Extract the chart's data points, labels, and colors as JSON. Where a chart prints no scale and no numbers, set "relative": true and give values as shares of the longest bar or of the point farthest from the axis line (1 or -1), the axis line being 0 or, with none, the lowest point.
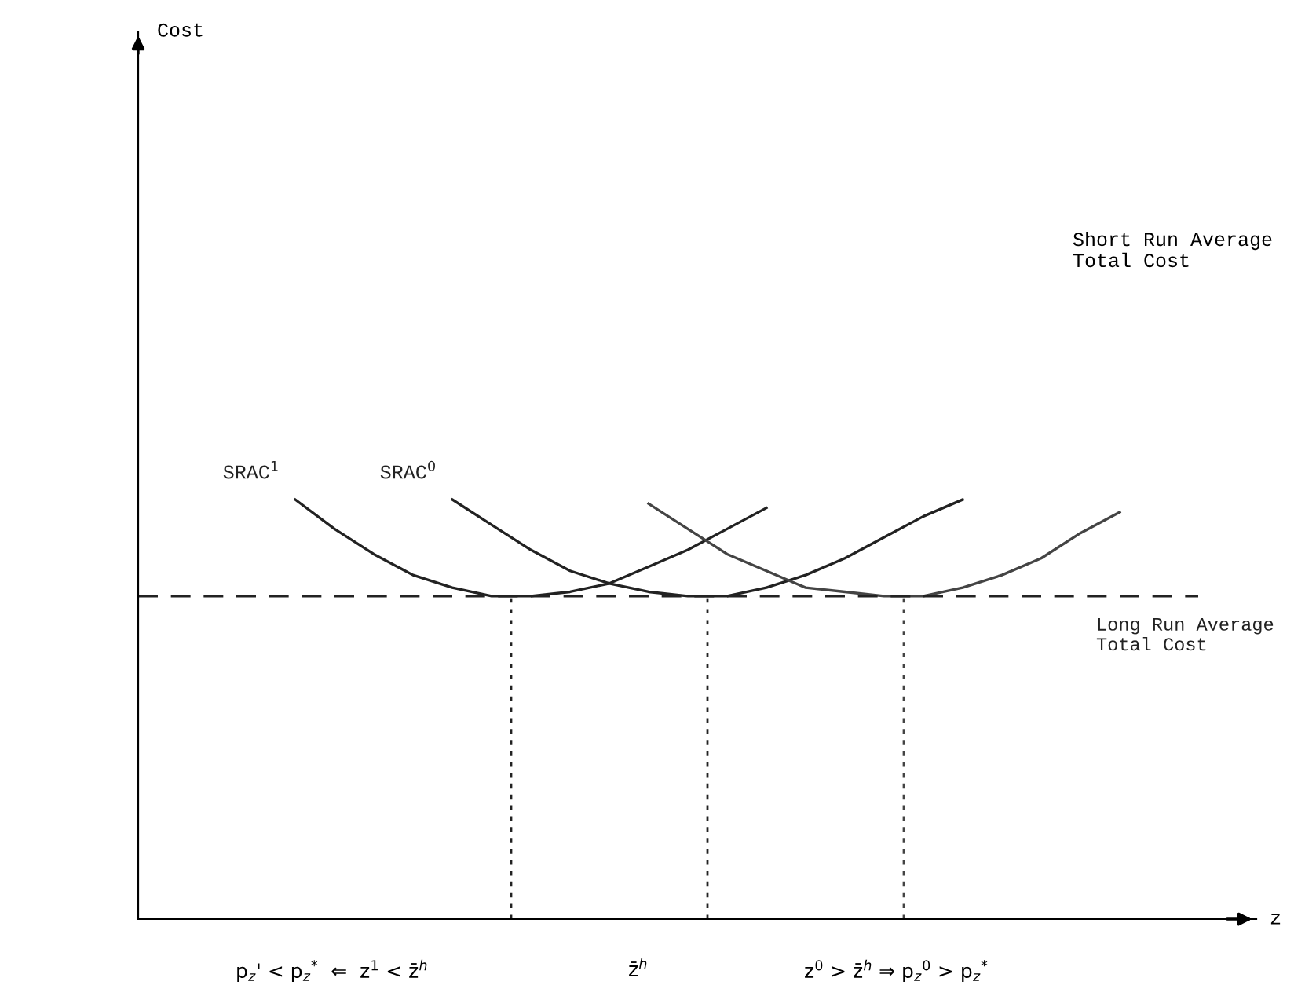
{
  "chart_data": {
    "type": "line",
    "relative": true,
    "xlabel": "z",
    "categories": [
      null,
      null,
      null,
      null,
      null,
      null,
      null,
      null,
      null,
      null,
      null,
      null,
      null,
      null,
      null,
      null,
      null,
      null,
      null,
      null,
      null,
      null,
      null,
      null,
      null,
      null,
      null,
      null
    ],
    "series": [
      {
        "name": "SRAC$^{1}$",
        "color": "#222222",
        "values": [
          null,
          null,
          null,
          null,
          1.0,
          0.93,
          0.87,
          0.82,
          0.79,
          0.77,
          0.77,
          0.78,
          0.8,
          0.84,
          0.88,
          0.93,
          0.98,
          null,
          null,
          null,
          null,
          null,
          null,
          null,
          null,
          null,
          null,
          null
        ]
      },
      {
        "name": "SRAC$^{0}$",
        "color": "#222222",
        "values": [
          null,
          null,
          null,
          null,
          null,
          null,
          null,
          null,
          1.0,
          0.94,
          0.88,
          0.83,
          0.8,
          0.78,
          0.77,
          0.77,
          0.79,
          0.82,
          0.86,
          0.91,
          0.96,
          1.0,
          null,
          null,
          null,
          null,
          null,
          null
        ]
      },
      {
        "color": "#444444",
        "values": [
          null,
          null,
          null,
          null,
          null,
          null,
          null,
          null,
          null,
          null,
          null,
          null,
          null,
          0.99,
          0.93,
          0.87,
          0.83,
          0.79,
          0.78,
          0.77,
          0.77,
          0.79,
          0.82,
          0.86,
          0.92,
          0.97,
          null,
          null
        ]
      },
      {
        "name": "Long Run Average\nTotal Cost",
        "color": "#222222",
        "line_style": "dashed",
        "values": [
          0.77,
          0.77,
          0.77,
          0.77,
          0.77,
          0.77,
          0.77,
          0.77,
          0.77,
          0.77,
          0.77,
          0.77,
          0.77,
          0.77,
          0.77,
          0.77,
          0.77,
          0.77,
          0.77,
          0.77,
          0.77,
          0.77,
          0.77,
          0.77,
          0.77,
          0.77,
          0.77,
          0.77
        ]
      }
    ],
    "annotations": [
      "Cost",
      "Short Run Average\nTotal Cost",
      "p$_{z}$' < p$_{z}$$^{*}$  ⇐  z$^{1}$ < z̄$^{h}$",
      "z̄$^{h}$",
      "z$^{0}$ > z̄$^{h}$ ⇒ p$_{z}$$^{0}$ > p$_{z}$$^{*}$"
    ],
    "legend": false
  }
}
